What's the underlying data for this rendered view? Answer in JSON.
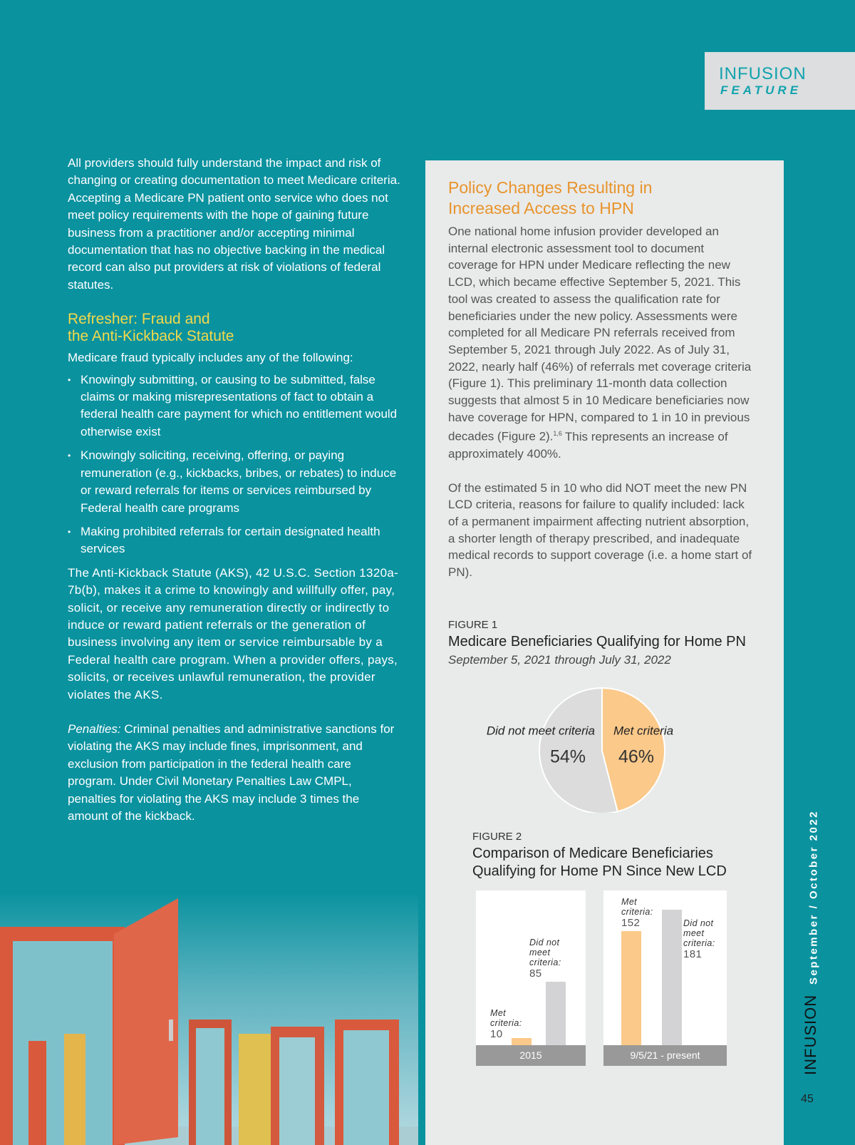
{
  "header": {
    "brand": "INFUSION",
    "section": "FEATURE"
  },
  "left": {
    "intro": "All providers should fully understand the impact and risk of changing or creating documentation to meet Medicare criteria. Accepting a Medicare PN patient onto service who does not meet policy requirements with the hope of gaining future business from a practitioner and/or accepting minimal documentation that has no objective backing in the medical record can also put providers at risk of violations of federal statutes.",
    "heading": [
      "Refresher: Fraud and",
      "the Anti-Kickback Statute"
    ],
    "lead": "Medicare fraud typically includes any of the following:",
    "bullets": [
      "Knowingly submitting, or causing to be submitted, false claims or making misrepresentations of fact to obtain a federal health care payment for which no entitlement would otherwise exist",
      "Knowingly soliciting, receiving, offering, or paying remuneration (e.g., kickbacks, bribes, or rebates) to induce or reward referrals for items or services reimbursed by Federal health care programs",
      "Making prohibited referrals for certain designated health services"
    ],
    "aks": "The Anti-Kickback Statute (AKS), 42 U.S.C. Section 1320a-7b(b), makes it a crime to knowingly and willfully offer, pay, solicit, or receive any remuneration directly or indirectly to induce or reward patient referrals or the generation of business involving any item or service reimbursable by a Federal health care program. When a provider offers, pays, solicits, or receives unlawful remuneration, the provider violates the AKS.",
    "penalties_label": "Penalties:",
    "penalties": "Criminal penalties and administrative sanctions for violating the AKS may include fines, imprisonment, and exclusion from participation in the federal health care program. Under Civil Monetary Penalties Law CMPL, penalties for violating the AKS may include 3 times the amount of the kickback."
  },
  "sidebar": {
    "title": [
      "Policy Changes Resulting in",
      "Increased Access to HPN"
    ],
    "p1_before": "One national home infusion provider developed an internal electronic assessment tool to document coverage for HPN under Medicare reflecting the new LCD, which became effective September 5, 2021. This tool was created to assess the qualification rate for beneficiaries under the new policy. Assessments were completed for all Medicare PN referrals received from September 5, 2021 through July 2022. As of July 31, 2022, nearly half (46%) of referrals met coverage criteria (Figure 1). This preliminary 11-month data collection suggests that almost 5 in 10 Medicare beneficiaries now have coverage for HPN, compared to 1 in 10 in previous decades (Figure 2).",
    "p1_sup": "1,6",
    "p1_after": "This represents an increase of approximately 400%.",
    "p2": "Of the estimated 5 in 10 who did NOT meet the new PN LCD criteria, reasons for failure to qualify included: lack of a permanent impairment affecting nutrient absorption, a shorter length of therapy prescribed, and inadequate medical records to support coverage (i.e. a home start of PN)."
  },
  "chart_data": [
    {
      "type": "pie",
      "label": "FIGURE 1",
      "title": "Medicare Beneficiaries Qualifying for Home PN",
      "subtitle": "September 5, 2021 through July 31, 2022",
      "categories": [
        "Did not meet criteria",
        "Met criteria"
      ],
      "values": [
        54,
        46
      ],
      "value_labels": [
        "54%",
        "46%"
      ],
      "colors": [
        "#dcdcdd",
        "#fbc98a"
      ]
    },
    {
      "type": "bar",
      "label": "FIGURE 2",
      "title": [
        "Comparison of Medicare Beneficiaries",
        "Qualifying for Home PN Since New LCD"
      ],
      "categories": [
        "2015",
        "9/5/21 - present"
      ],
      "series": [
        {
          "name": "Met criteria:",
          "color": "#fbc98a",
          "values": [
            10,
            152
          ]
        },
        {
          "name": "Did not meet criteria:",
          "color": "#d3d3d5",
          "values": [
            85,
            181
          ]
        }
      ]
    }
  ],
  "footer": {
    "date": "September / October 2022",
    "brand": "INFUSION",
    "page": "45"
  }
}
